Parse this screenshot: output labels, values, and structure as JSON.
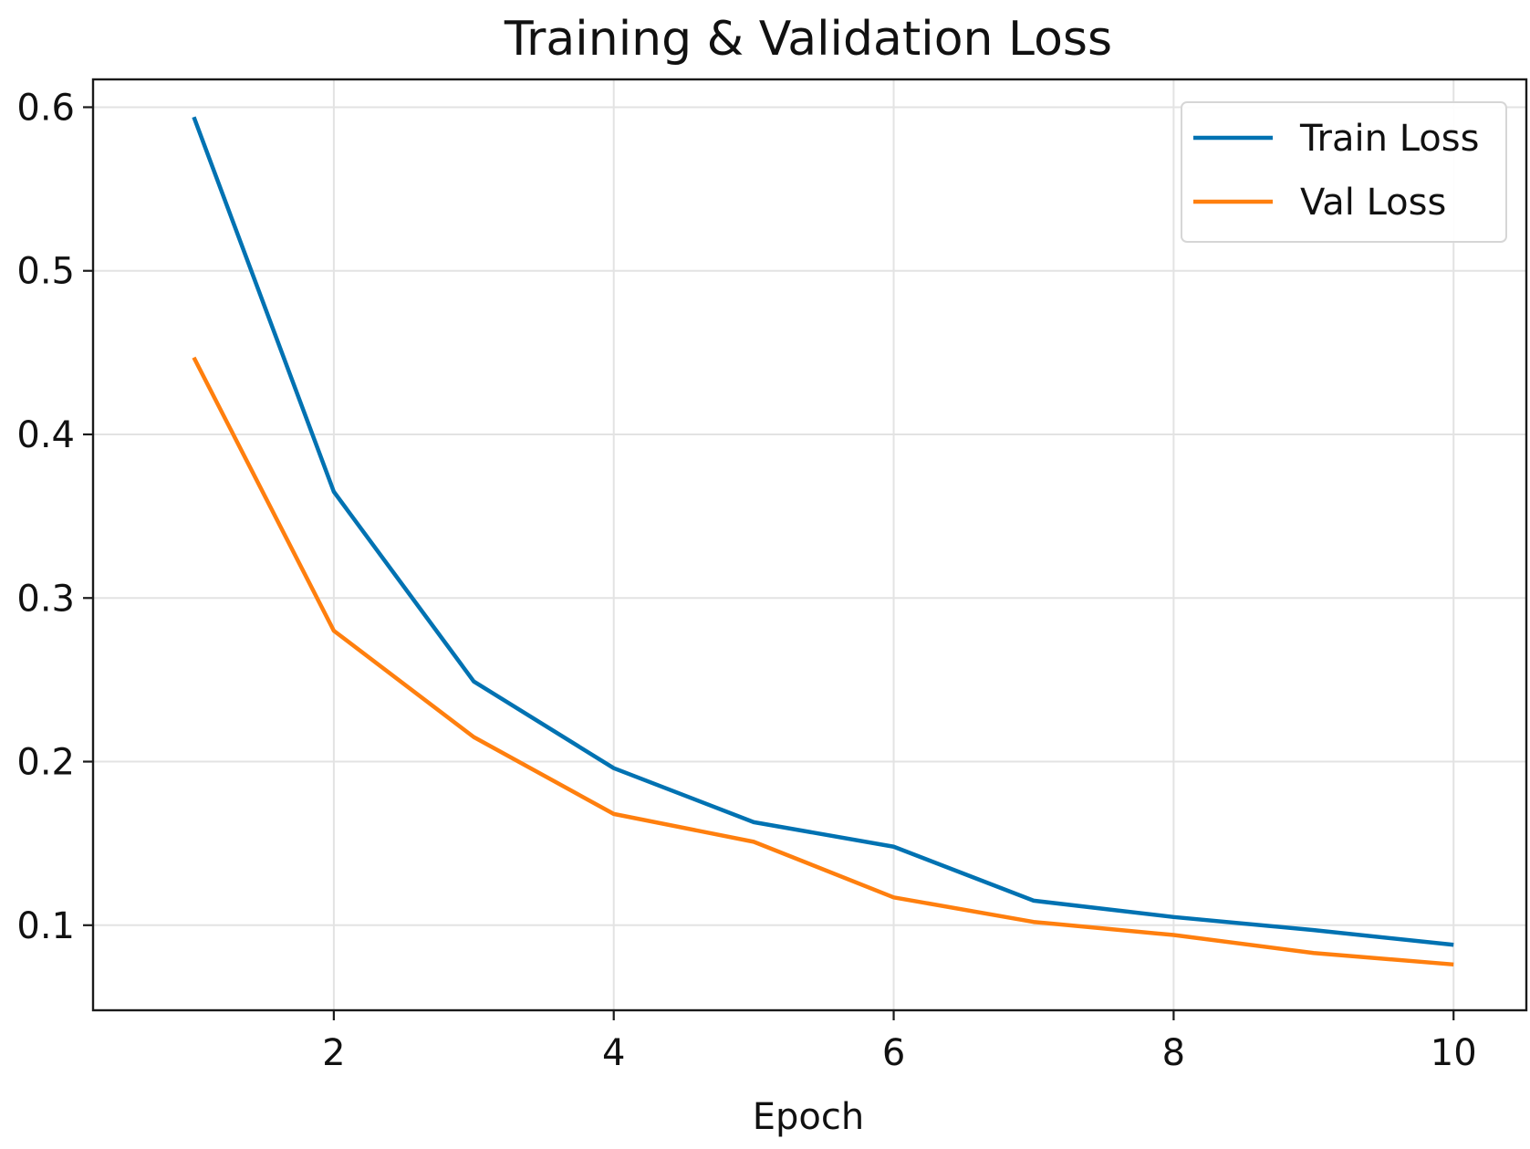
{
  "chart_data": {
    "type": "line",
    "title": "Training & Validation Loss",
    "xlabel": "Epoch",
    "ylabel": "",
    "x": [
      1,
      2,
      3,
      4,
      5,
      6,
      7,
      8,
      9,
      10
    ],
    "xlim": [
      0.28,
      10.52
    ],
    "ylim": [
      0.048,
      0.617
    ],
    "xticks": [
      2,
      4,
      6,
      8,
      10
    ],
    "xtick_labels": [
      "2",
      "4",
      "6",
      "8",
      "10"
    ],
    "yticks": [
      0.1,
      0.2,
      0.3,
      0.4,
      0.5,
      0.6
    ],
    "ytick_labels": [
      "0.1",
      "0.2",
      "0.3",
      "0.4",
      "0.5",
      "0.6"
    ],
    "grid": true,
    "legend_position": "top-right",
    "series": [
      {
        "name": "Train Loss",
        "color": "#0072b2",
        "values": [
          0.594,
          0.365,
          0.249,
          0.196,
          0.163,
          0.148,
          0.115,
          0.105,
          0.097,
          0.088
        ]
      },
      {
        "name": "Val Loss",
        "color": "#ff7f0e",
        "values": [
          0.447,
          0.28,
          0.215,
          0.168,
          0.151,
          0.117,
          0.102,
          0.094,
          0.083,
          0.076
        ]
      }
    ]
  }
}
